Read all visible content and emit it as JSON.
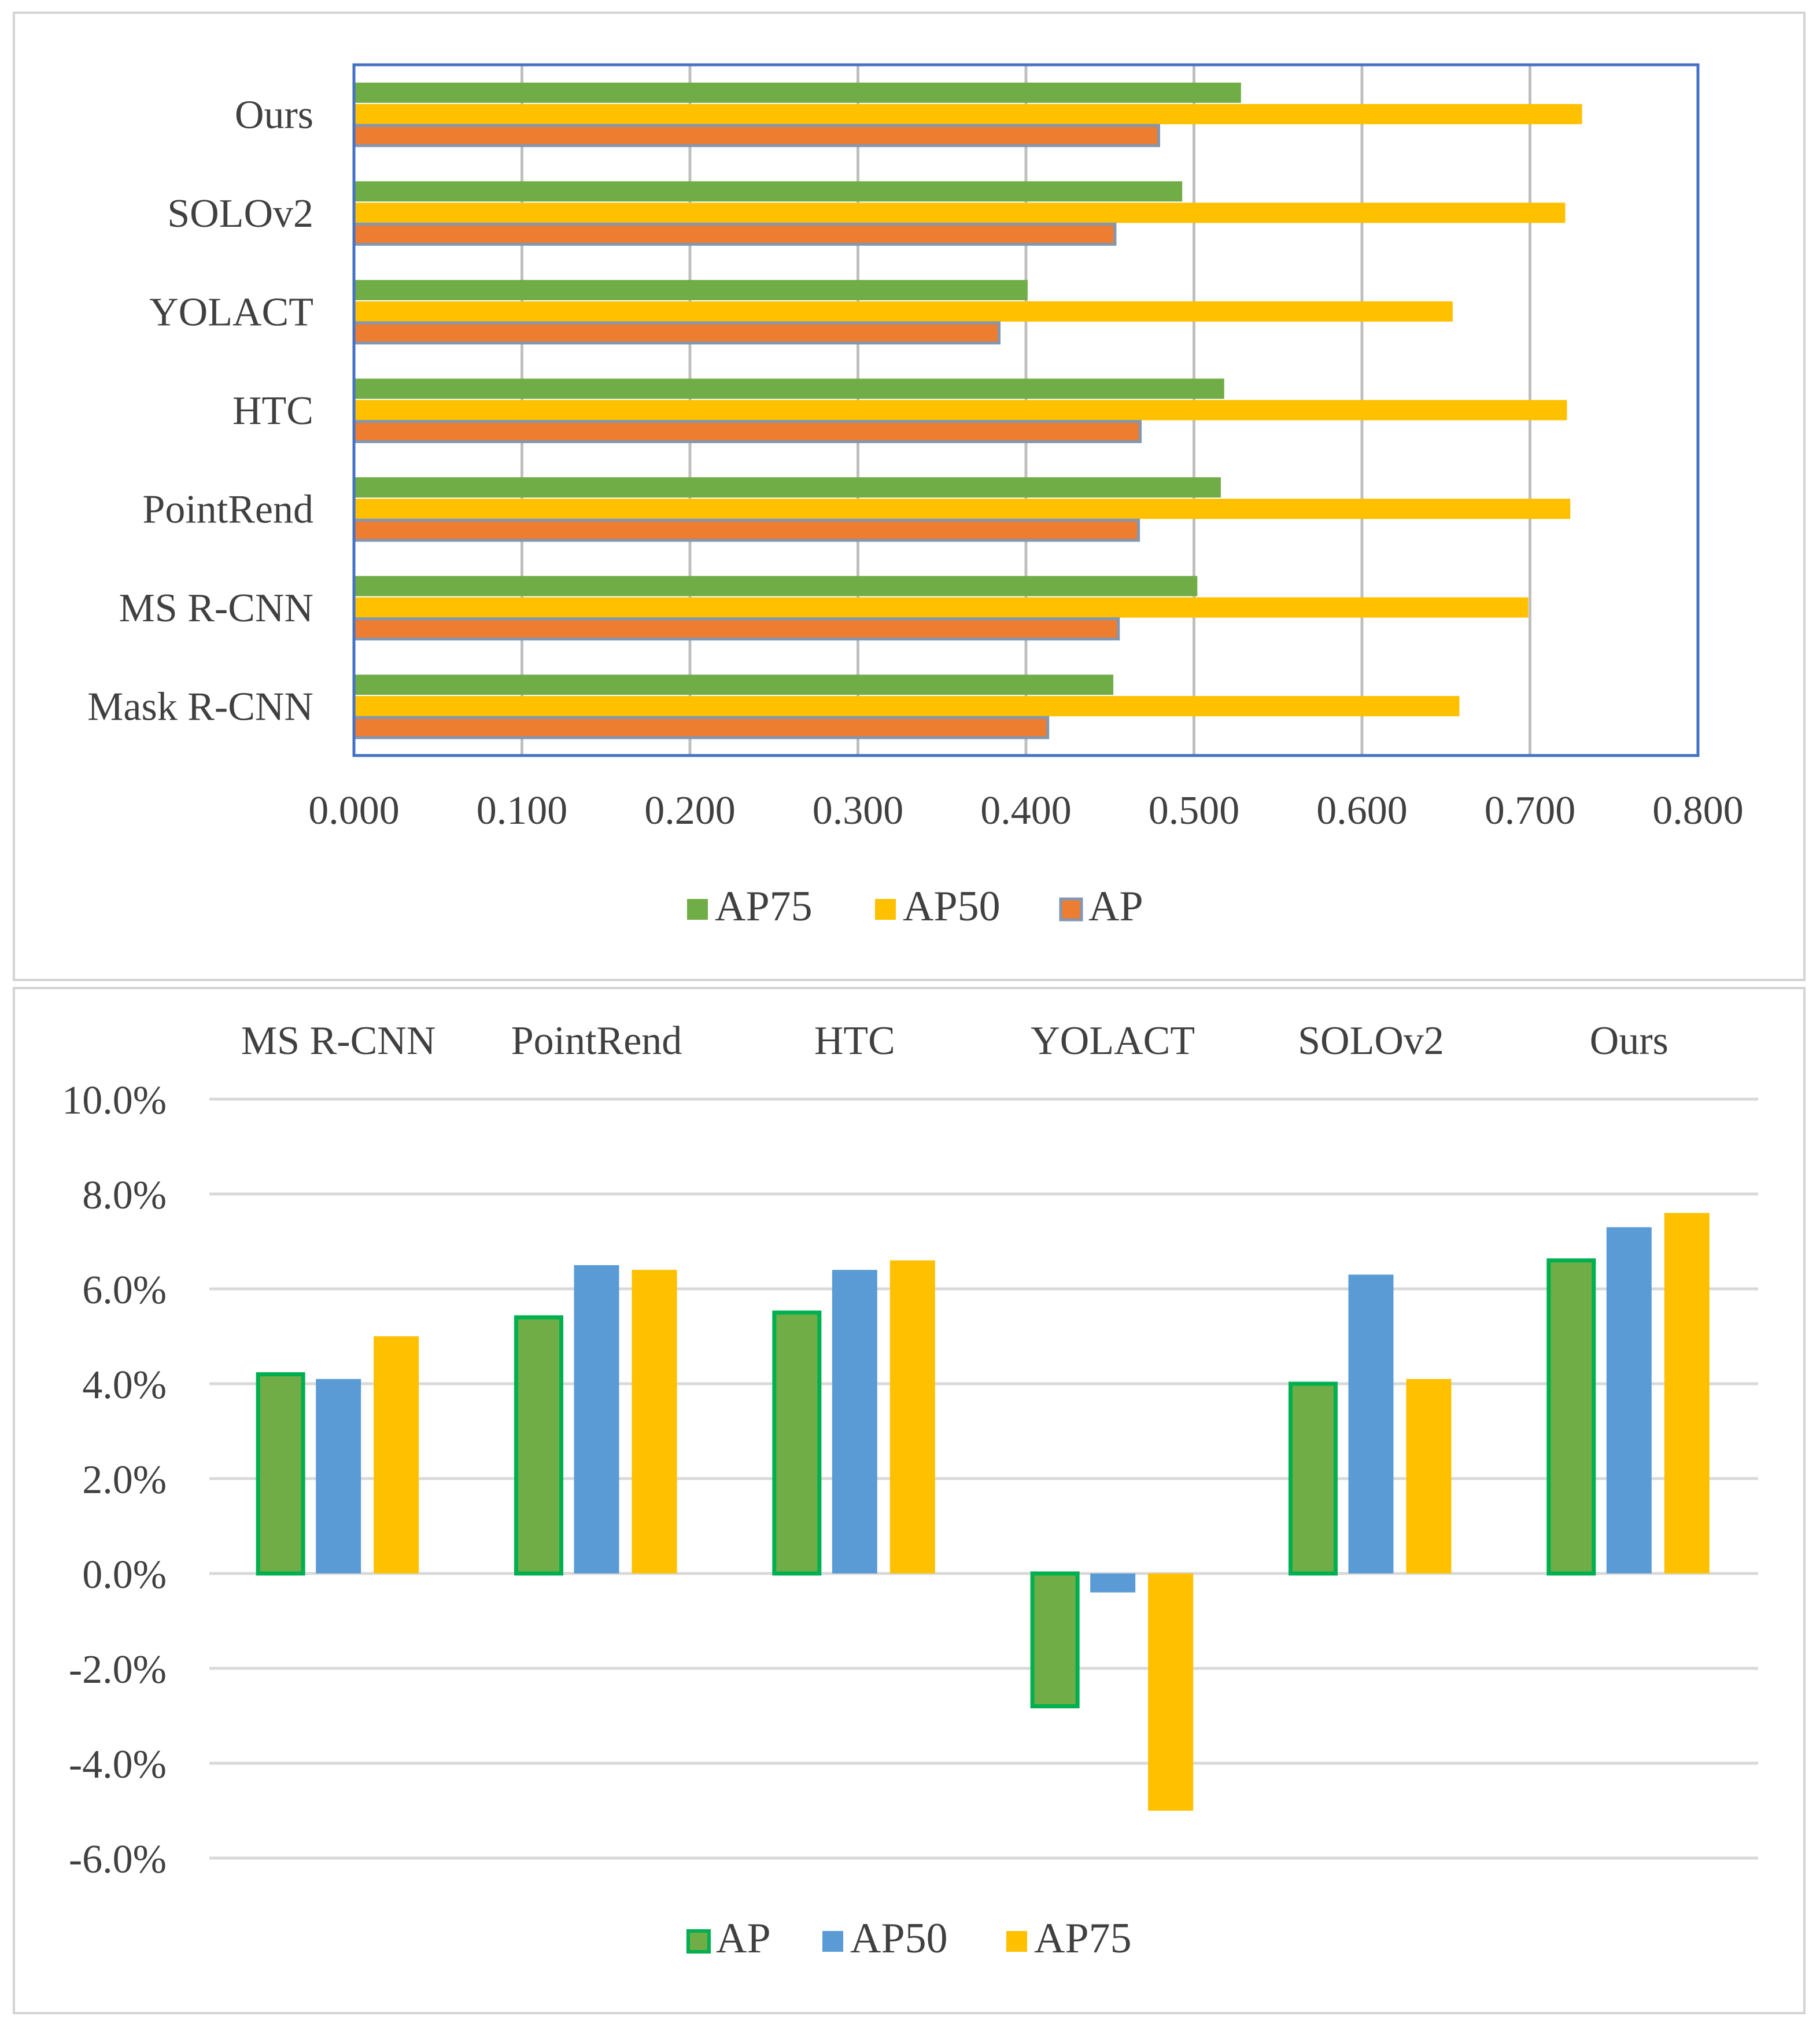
{
  "chart_data": [
    {
      "type": "bar",
      "orientation": "horizontal",
      "categories": [
        "Mask R-CNN",
        "MS R-CNN",
        "PointRend",
        "HTC",
        "YOLACT",
        "SOLOv2",
        "Ours"
      ],
      "series": [
        {
          "name": "AP75",
          "color": "#70ad47",
          "values": [
            0.452,
            0.502,
            0.516,
            0.518,
            0.401,
            0.493,
            0.528
          ]
        },
        {
          "name": "AP50",
          "color": "#ffc000",
          "values": [
            0.658,
            0.699,
            0.724,
            0.722,
            0.654,
            0.721,
            0.731
          ]
        },
        {
          "name": "AP",
          "color": "#ed7d31",
          "border_color": "#8497b0",
          "values": [
            0.413,
            0.455,
            0.467,
            0.468,
            0.384,
            0.453,
            0.479
          ]
        }
      ],
      "xlim": [
        0,
        0.8
      ],
      "x_ticks": [
        "0.000",
        "0.100",
        "0.200",
        "0.300",
        "0.400",
        "0.500",
        "0.600",
        "0.700",
        "0.800"
      ],
      "grid": true,
      "legend_position": "bottom",
      "title": "",
      "xlabel": "",
      "ylabel": ""
    },
    {
      "type": "bar",
      "orientation": "vertical",
      "categories": [
        "MS R-CNN",
        "PointRend",
        "HTC",
        "YOLACT",
        "SOLOv2",
        "Ours"
      ],
      "series": [
        {
          "name": "AP",
          "color": "#70ad47",
          "border_color": "#00b050",
          "values": [
            4.2,
            5.4,
            5.5,
            -2.8,
            4.0,
            6.6
          ]
        },
        {
          "name": "AP50",
          "color": "#5b9bd5",
          "values": [
            4.1,
            6.5,
            6.4,
            -0.4,
            6.3,
            7.3
          ]
        },
        {
          "name": "AP75",
          "color": "#ffc000",
          "values": [
            5.0,
            6.4,
            6.6,
            -5.0,
            4.1,
            7.6
          ]
        }
      ],
      "ylim": [
        -6,
        10
      ],
      "y_ticks": [
        "-6.0%",
        "-4.0%",
        "-2.0%",
        "0.0%",
        "2.0%",
        "4.0%",
        "6.0%",
        "8.0%",
        "10.0%"
      ],
      "category_labels_position": "top",
      "grid": true,
      "legend_position": "bottom",
      "title": "",
      "xlabel": "",
      "ylabel": ""
    }
  ]
}
